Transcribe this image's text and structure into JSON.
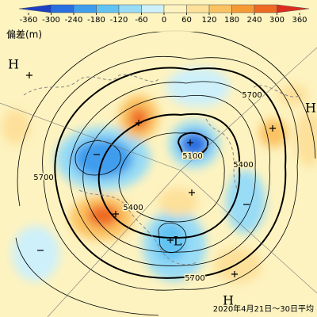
{
  "legend": {
    "unit": "偏差(m)",
    "ticks": [
      -360,
      -300,
      -240,
      -180,
      -120,
      -60,
      0,
      60,
      120,
      180,
      240,
      300,
      360
    ],
    "colors": [
      "#1d3fc4",
      "#2a6fe0",
      "#3f9ded",
      "#62c3f3",
      "#98dcf6",
      "#cdf0fa",
      "#fdf3c0",
      "#fde09a",
      "#fbc262",
      "#f69b34",
      "#ee6a22",
      "#dc2c1c"
    ]
  },
  "contour_labels": [
    5700,
    5100,
    5400,
    5700,
    5400,
    5700
  ],
  "pressure_labels": [
    "H",
    "H",
    "H",
    "L"
  ],
  "date": "2020年4月21日～30日平均"
}
